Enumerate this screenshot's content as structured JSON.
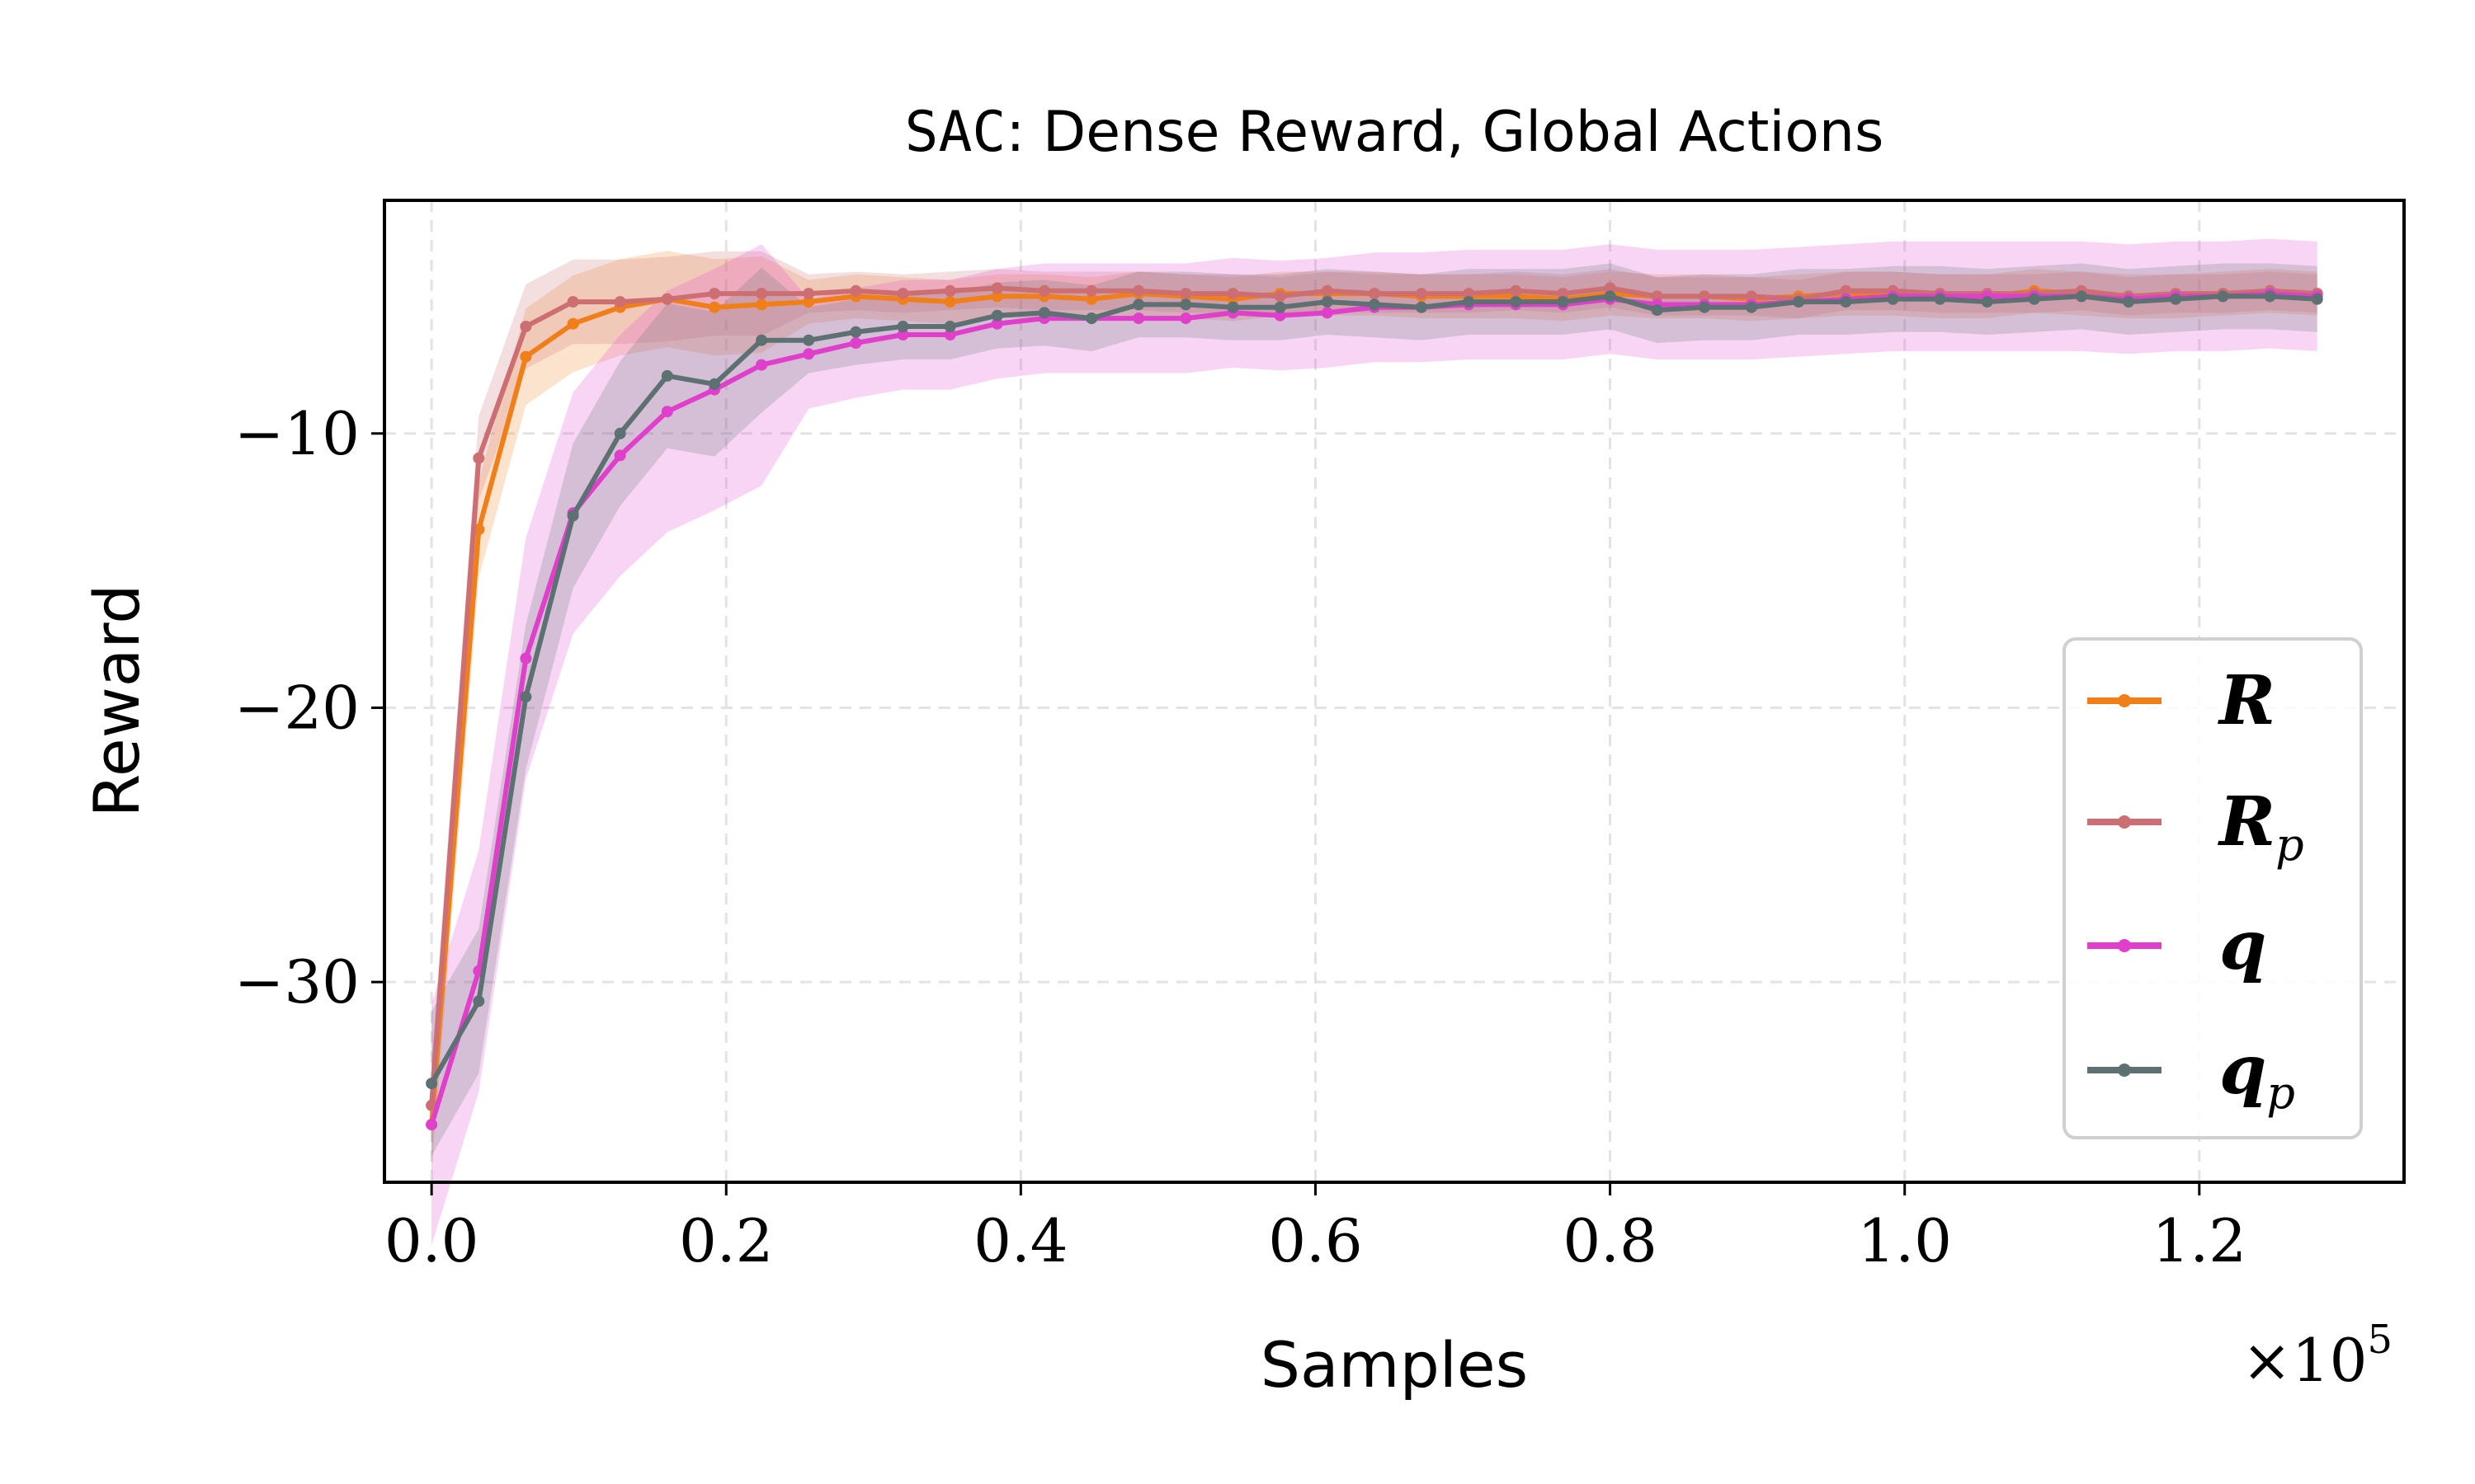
{
  "chart_data": {
    "type": "line",
    "title_prefix": "SAC",
    "title_rest": ": Dense Reward, Global Actions",
    "xlabel": "Samples",
    "ylabel": "Reward",
    "x_multiplier_label": "×10",
    "x_multiplier_exp": "5",
    "xlim": [
      -0.032,
      1.339
    ],
    "ylim": [
      -37.3,
      -1.5
    ],
    "xticks": [
      0.0,
      0.2,
      0.4,
      0.6,
      0.8,
      1.0,
      1.2
    ],
    "xtick_labels": [
      "0.0",
      "0.2",
      "0.4",
      "0.6",
      "0.8",
      "1.0",
      "1.2"
    ],
    "yticks": [
      -10,
      -20,
      -30
    ],
    "ytick_labels": [
      "−10",
      "−20",
      "−30"
    ],
    "grid": true,
    "legend_position": "lower-right",
    "x": [
      0.0,
      0.032,
      0.064,
      0.096,
      0.128,
      0.16,
      0.192,
      0.224,
      0.256,
      0.288,
      0.32,
      0.352,
      0.384,
      0.416,
      0.448,
      0.48,
      0.512,
      0.544,
      0.576,
      0.608,
      0.64,
      0.672,
      0.704,
      0.736,
      0.768,
      0.8,
      0.832,
      0.864,
      0.896,
      0.928,
      0.96,
      0.992,
      1.024,
      1.056,
      1.088,
      1.12,
      1.152,
      1.184,
      1.216,
      1.248,
      1.28
    ],
    "series": [
      {
        "name": "R",
        "label_main": "R",
        "label_sub": "",
        "color": "#f07f1a",
        "band": 0.8,
        "values": [
          -35.2,
          -13.5,
          -7.2,
          -6.0,
          -5.4,
          -5.1,
          -5.4,
          -5.3,
          -5.2,
          -5.0,
          -5.1,
          -5.2,
          -5.0,
          -5.0,
          -5.1,
          -4.9,
          -5.0,
          -5.1,
          -4.9,
          -4.9,
          -4.9,
          -5.0,
          -5.0,
          -5.0,
          -5.1,
          -4.9,
          -5.0,
          -5.0,
          -5.1,
          -5.0,
          -4.9,
          -4.9,
          -5.0,
          -5.0,
          -4.8,
          -4.9,
          -5.0,
          -5.0,
          -4.9,
          -4.8,
          -4.9
        ]
      },
      {
        "name": "R_p",
        "label_main": "R",
        "label_sub": "p",
        "color": "#cd6f72",
        "band": 0.7,
        "values": [
          -34.5,
          -10.9,
          -6.1,
          -5.2,
          -5.2,
          -5.1,
          -4.9,
          -4.9,
          -4.9,
          -4.8,
          -4.9,
          -4.8,
          -4.7,
          -4.8,
          -4.8,
          -4.8,
          -4.9,
          -4.9,
          -5.0,
          -4.8,
          -4.9,
          -4.9,
          -4.9,
          -4.8,
          -4.9,
          -4.7,
          -5.0,
          -5.0,
          -5.0,
          -5.1,
          -4.8,
          -4.8,
          -4.9,
          -4.9,
          -4.9,
          -4.8,
          -5.0,
          -4.9,
          -4.9,
          -4.8,
          -4.9
        ]
      },
      {
        "name": "q",
        "label_main": "q",
        "label_sub": "",
        "color": "#e03fcb",
        "band": 2.0,
        "values": [
          -35.2,
          -29.6,
          -18.2,
          -12.9,
          -10.8,
          -9.2,
          -8.4,
          -7.5,
          -7.1,
          -6.7,
          -6.4,
          -6.4,
          -6.0,
          -5.8,
          -5.8,
          -5.8,
          -5.8,
          -5.6,
          -5.7,
          -5.6,
          -5.4,
          -5.4,
          -5.3,
          -5.3,
          -5.3,
          -5.1,
          -5.3,
          -5.3,
          -5.3,
          -5.2,
          -5.1,
          -5.0,
          -5.0,
          -5.0,
          -5.0,
          -5.0,
          -5.1,
          -5.0,
          -5.0,
          -4.9,
          -5.0
        ]
      },
      {
        "name": "q_p",
        "label_main": "q",
        "label_sub": "p",
        "color": "#5d7072",
        "band": 1.2,
        "values": [
          -33.7,
          -30.7,
          -19.6,
          -13.0,
          -10.0,
          -7.9,
          -8.2,
          -6.6,
          -6.6,
          -6.3,
          -6.1,
          -6.1,
          -5.7,
          -5.6,
          -5.8,
          -5.3,
          -5.3,
          -5.4,
          -5.4,
          -5.2,
          -5.3,
          -5.4,
          -5.2,
          -5.2,
          -5.2,
          -5.0,
          -5.5,
          -5.4,
          -5.4,
          -5.2,
          -5.2,
          -5.1,
          -5.1,
          -5.2,
          -5.1,
          -5.0,
          -5.2,
          -5.1,
          -5.0,
          -5.0,
          -5.1
        ]
      }
    ]
  }
}
